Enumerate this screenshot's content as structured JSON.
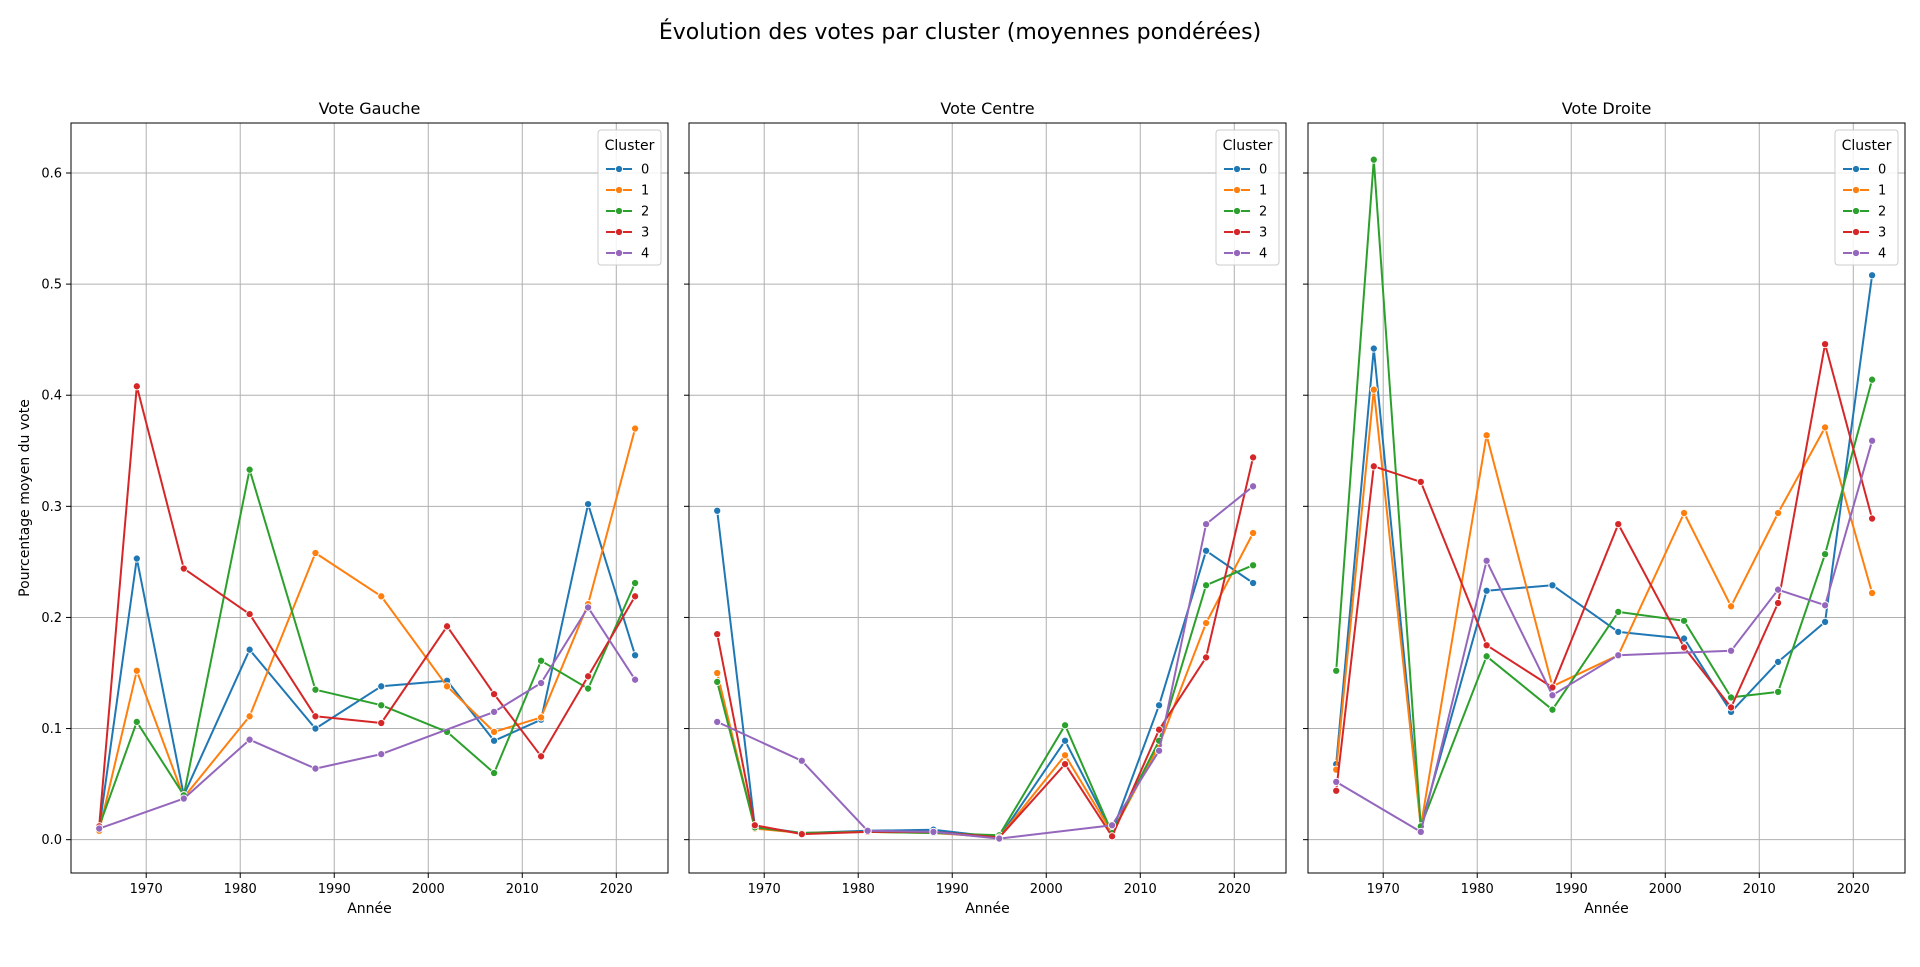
{
  "title": "Évolution des votes par cluster (moyennes pondérées)",
  "chart_data": {
    "type": "line",
    "ylabel": "Pourcentage moyen du vote",
    "xlabel": "Année",
    "xlim": [
      1962,
      2025.5
    ],
    "ylim": [
      -0.03,
      0.645
    ],
    "xticks": [
      1970,
      1980,
      1990,
      2000,
      2010,
      2020
    ],
    "yticks": [
      0.0,
      0.1,
      0.2,
      0.3,
      0.4,
      0.5,
      0.6
    ],
    "grid": true,
    "legend": {
      "title": "Cluster",
      "placement": "top-right"
    },
    "series_colors": [
      "#1f77b4",
      "#ff7f0e",
      "#2ca02c",
      "#d62728",
      "#9467bd"
    ],
    "panels": [
      {
        "title": "Vote Gauche",
        "series": [
          {
            "name": "0",
            "x": [
              1965,
              1969,
              1974,
              1981,
              1988,
              1995,
              2002,
              2007,
              2012,
              2017,
              2022
            ],
            "y": [
              0.01,
              0.253,
              0.04,
              0.171,
              0.1,
              0.138,
              0.143,
              0.089,
              0.108,
              0.302,
              0.166
            ]
          },
          {
            "name": "1",
            "x": [
              1965,
              1969,
              1974,
              1981,
              1988,
              1995,
              2002,
              2007,
              2012,
              2017,
              2022
            ],
            "y": [
              0.008,
              0.152,
              0.038,
              0.111,
              0.258,
              0.219,
              0.138,
              0.097,
              0.11,
              0.212,
              0.37
            ]
          },
          {
            "name": "2",
            "x": [
              1965,
              1969,
              1974,
              1981,
              1988,
              1995,
              2002,
              2007,
              2012,
              2017,
              2022
            ],
            "y": [
              0.012,
              0.106,
              0.04,
              0.333,
              0.135,
              0.121,
              0.097,
              0.06,
              0.161,
              0.136,
              0.231
            ]
          },
          {
            "name": "3",
            "x": [
              1965,
              1969,
              1974,
              1981,
              1988,
              1995,
              2002,
              2007,
              2012,
              2017,
              2022
            ],
            "y": [
              0.012,
              0.408,
              0.244,
              0.203,
              0.111,
              0.105,
              0.192,
              0.131,
              0.075,
              0.147,
              0.219
            ]
          },
          {
            "name": "4",
            "x": [
              1965,
              1974,
              1981,
              1988,
              1995,
              2007,
              2012,
              2017,
              2022
            ],
            "y": [
              0.01,
              0.037,
              0.09,
              0.064,
              0.077,
              0.115,
              0.141,
              0.209,
              0.144
            ]
          }
        ]
      },
      {
        "title": "Vote Centre",
        "series": [
          {
            "name": "0",
            "x": [
              1965,
              1969,
              1974,
              1981,
              1988,
              1995,
              2002,
              2007,
              2012,
              2017,
              2022
            ],
            "y": [
              0.296,
              0.012,
              0.006,
              0.008,
              0.009,
              0.002,
              0.089,
              0.007,
              0.121,
              0.26,
              0.231
            ]
          },
          {
            "name": "1",
            "x": [
              1965,
              1969,
              1974,
              1981,
              1988,
              1995,
              2002,
              2007,
              2012,
              2017,
              2022
            ],
            "y": [
              0.15,
              0.01,
              0.006,
              0.007,
              0.006,
              0.002,
              0.076,
              0.006,
              0.085,
              0.195,
              0.276
            ]
          },
          {
            "name": "2",
            "x": [
              1965,
              1969,
              1974,
              1981,
              1988,
              1995,
              2002,
              2007,
              2012,
              2017,
              2022
            ],
            "y": [
              0.142,
              0.011,
              0.006,
              0.007,
              0.006,
              0.004,
              0.103,
              0.006,
              0.089,
              0.229,
              0.247
            ]
          },
          {
            "name": "3",
            "x": [
              1965,
              1969,
              1974,
              1981,
              1988,
              1995,
              2002,
              2007,
              2012,
              2017,
              2022
            ],
            "y": [
              0.185,
              0.013,
              0.005,
              0.007,
              0.007,
              0.002,
              0.068,
              0.003,
              0.099,
              0.164,
              0.344
            ]
          },
          {
            "name": "4",
            "x": [
              1965,
              1974,
              1981,
              1988,
              1995,
              2007,
              2012,
              2017,
              2022
            ],
            "y": [
              0.106,
              0.071,
              0.008,
              0.007,
              0.001,
              0.013,
              0.08,
              0.284,
              0.318
            ]
          }
        ]
      },
      {
        "title": "Vote Droite",
        "series": [
          {
            "name": "0",
            "x": [
              1965,
              1969,
              1974,
              1981,
              1988,
              1995,
              2002,
              2007,
              2012,
              2017,
              2022
            ],
            "y": [
              0.068,
              0.442,
              0.012,
              0.224,
              0.229,
              0.187,
              0.181,
              0.115,
              0.16,
              0.196,
              0.508
            ]
          },
          {
            "name": "1",
            "x": [
              1965,
              1969,
              1974,
              1981,
              1988,
              1995,
              2002,
              2007,
              2012,
              2017,
              2022
            ],
            "y": [
              0.063,
              0.405,
              0.012,
              0.364,
              0.138,
              0.166,
              0.294,
              0.21,
              0.294,
              0.371,
              0.222
            ]
          },
          {
            "name": "2",
            "x": [
              1965,
              1969,
              1974,
              1981,
              1988,
              1995,
              2002,
              2007,
              2012,
              2017,
              2022
            ],
            "y": [
              0.152,
              0.612,
              0.012,
              0.165,
              0.117,
              0.205,
              0.197,
              0.128,
              0.133,
              0.257,
              0.414
            ]
          },
          {
            "name": "3",
            "x": [
              1965,
              1969,
              1974,
              1981,
              1988,
              1995,
              2002,
              2007,
              2012,
              2017,
              2022
            ],
            "y": [
              0.044,
              0.336,
              0.322,
              0.175,
              0.137,
              0.284,
              0.173,
              0.119,
              0.213,
              0.446,
              0.289
            ]
          },
          {
            "name": "4",
            "x": [
              1965,
              1974,
              1981,
              1988,
              1995,
              2007,
              2012,
              2017,
              2022
            ],
            "y": [
              0.052,
              0.007,
              0.251,
              0.13,
              0.166,
              0.17,
              0.225,
              0.211,
              0.359
            ]
          }
        ]
      }
    ]
  }
}
